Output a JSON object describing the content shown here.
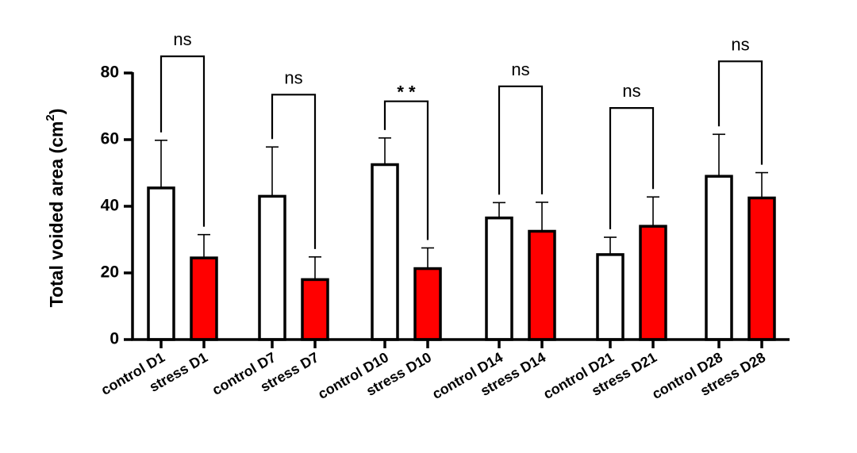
{
  "chart_data": {
    "type": "bar",
    "ylabel": "Total voided area (cm",
    "ylabel_superscript": "2",
    "ylabel_close": ")",
    "ylim": [
      0,
      80
    ],
    "yticks": [
      "0",
      "20",
      "40",
      "60",
      "80"
    ],
    "grid": false,
    "categories": [
      "control D1",
      "stress D1",
      "control D7",
      "stress D7",
      "control D10",
      "stress D10",
      "control D14",
      "stress D14",
      "control D21",
      "stress D21",
      "control D28",
      "stress D28"
    ],
    "values": [
      45.5,
      24.5,
      43.0,
      18.0,
      52.5,
      21.3,
      36.5,
      32.5,
      25.5,
      34.0,
      49.0,
      42.5
    ],
    "errors": [
      14.3,
      7.0,
      14.8,
      6.8,
      8.0,
      6.2,
      4.6,
      8.7,
      5.2,
      8.8,
      12.6,
      7.6
    ],
    "colors": [
      "#ffffff",
      "#ff0000",
      "#ffffff",
      "#ff0000",
      "#ffffff",
      "#ff0000",
      "#ffffff",
      "#ff0000",
      "#ffffff",
      "#ff0000",
      "#ffffff",
      "#ff0000"
    ],
    "comparisons": [
      {
        "pair": [
          0,
          1
        ],
        "label": "ns",
        "y": 85.0
      },
      {
        "pair": [
          2,
          3
        ],
        "label": "ns",
        "y": 73.5
      },
      {
        "pair": [
          4,
          5
        ],
        "label": "* *",
        "y": 71.5
      },
      {
        "pair": [
          6,
          7
        ],
        "label": "ns",
        "y": 76.0
      },
      {
        "pair": [
          8,
          9
        ],
        "label": "ns",
        "y": 69.5
      },
      {
        "pair": [
          10,
          11
        ],
        "label": "ns",
        "y": 83.5
      }
    ]
  }
}
